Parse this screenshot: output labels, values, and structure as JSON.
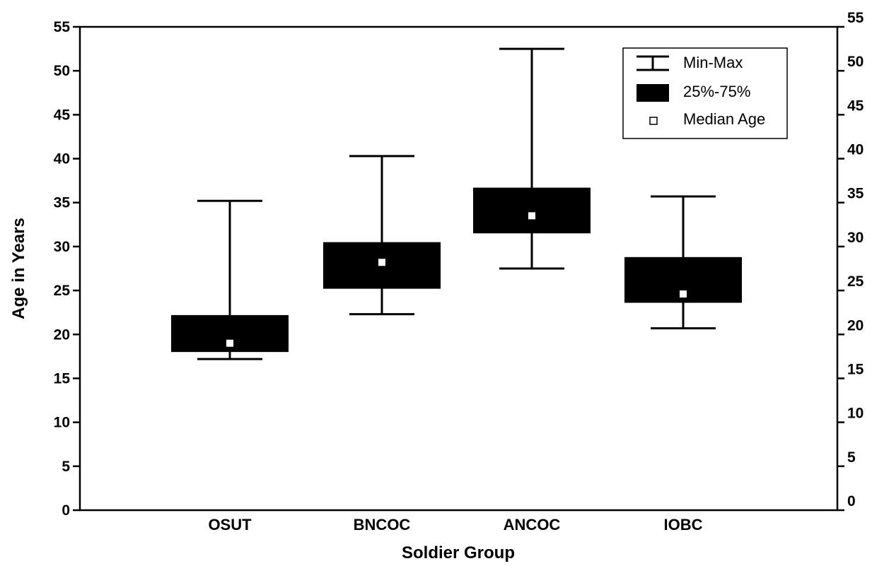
{
  "chart_data": {
    "type": "boxplot",
    "title": "",
    "xlabel": "Soldier Group",
    "ylabel": "Age in Years",
    "ylim": [
      0,
      55
    ],
    "yticks": [
      0,
      5,
      10,
      15,
      20,
      25,
      30,
      35,
      40,
      45,
      50,
      55
    ],
    "right_axis_ticks": [
      0,
      5,
      10,
      15,
      20,
      25,
      30,
      35,
      40,
      45,
      50,
      55
    ],
    "grid": false,
    "legend_position": "top-right",
    "categories": [
      "OSUT",
      "BNCOC",
      "ANCOC",
      "IOBC"
    ],
    "series": [
      {
        "min": 17.2,
        "q1": 18.0,
        "median": 19.0,
        "q3": 22.2,
        "max": 35.2
      },
      {
        "min": 22.3,
        "q1": 25.2,
        "median": 28.2,
        "q3": 30.5,
        "max": 40.3
      },
      {
        "min": 27.5,
        "q1": 31.5,
        "median": 33.5,
        "q3": 36.7,
        "max": 52.5
      },
      {
        "min": 20.7,
        "q1": 23.6,
        "median": 24.6,
        "q3": 28.8,
        "max": 35.7
      }
    ],
    "legend": {
      "minmax": "Min-Max",
      "box": "25%-75%",
      "median": "Median Age"
    },
    "colors": {
      "box": "#000000",
      "median": "#ffffff",
      "whisker": "#000000"
    }
  }
}
